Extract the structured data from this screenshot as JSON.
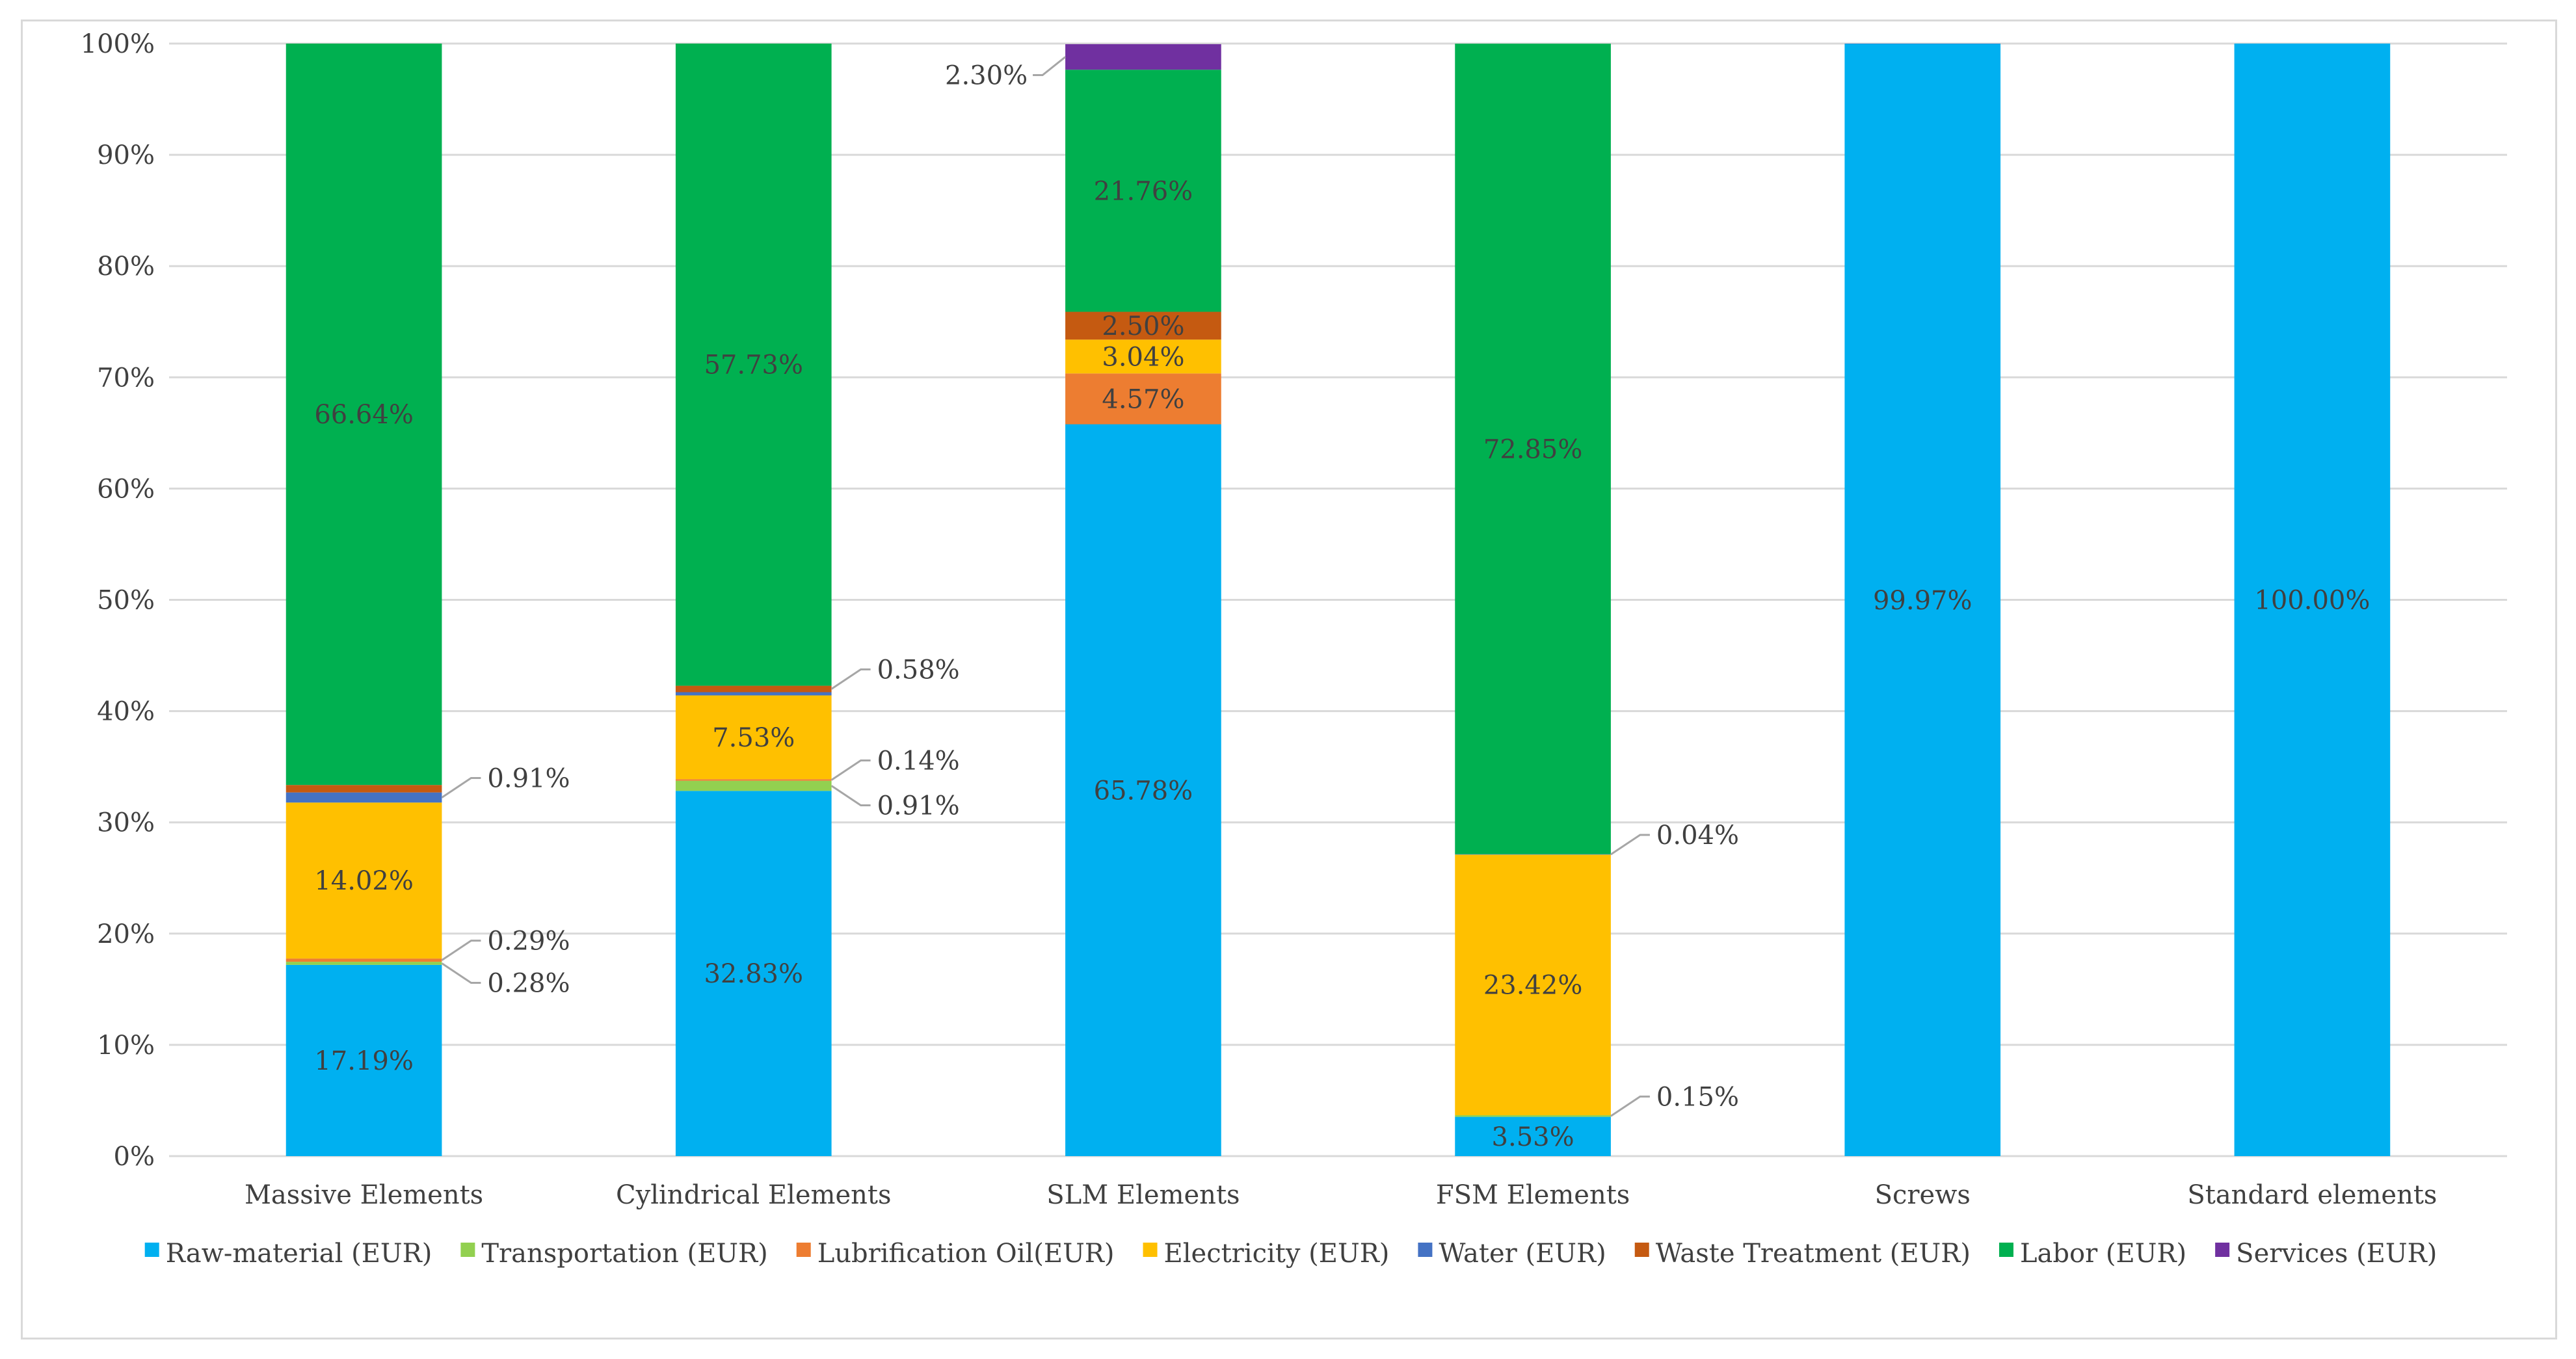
{
  "chart_data": {
    "type": "bar",
    "stacked": true,
    "percent_stacked": true,
    "title": "",
    "xlabel": "",
    "ylabel": "",
    "ylim": [
      0,
      100
    ],
    "y_ticks": [
      "0%",
      "10%",
      "20%",
      "30%",
      "40%",
      "50%",
      "60%",
      "70%",
      "80%",
      "90%",
      "100%"
    ],
    "grid": true,
    "legend_position": "bottom",
    "categories": [
      "Massive Elements",
      "Cylindrical Elements",
      "SLM Elements",
      "FSM Elements",
      "Screws",
      "Standard elements"
    ],
    "series": [
      {
        "name": "Raw-material (EUR)",
        "color": "#00b0f0",
        "values": [
          17.19,
          32.83,
          65.78,
          3.53,
          99.97,
          100.0
        ]
      },
      {
        "name": "Transportation (EUR)",
        "color": "#92d050",
        "values": [
          0.28,
          0.91,
          0,
          0.15,
          0,
          0
        ]
      },
      {
        "name": "Lubrification Oil(EUR)",
        "color": "#ed7d31",
        "values": [
          0.29,
          0.14,
          4.57,
          0,
          0,
          0
        ]
      },
      {
        "name": "Electricity (EUR)",
        "color": "#ffc000",
        "values": [
          14.02,
          7.53,
          3.04,
          23.42,
          0,
          0
        ]
      },
      {
        "name": "Water (EUR)",
        "color": "#4472c4",
        "values": [
          0.91,
          0.29,
          0,
          0.04,
          0.03,
          0
        ]
      },
      {
        "name": "Waste Treatment (EUR)",
        "color": "#c55a11",
        "values": [
          0.67,
          0.58,
          2.5,
          0,
          0,
          0
        ]
      },
      {
        "name": "Labor (EUR)",
        "color": "#00b050",
        "values": [
          66.64,
          57.73,
          21.76,
          72.85,
          0,
          0
        ]
      },
      {
        "name": "Services (EUR)",
        "color": "#7030a0",
        "values": [
          0,
          0,
          2.3,
          0,
          0,
          0
        ]
      }
    ],
    "data_labels": [
      {
        "category": 0,
        "series": 0,
        "text": "17.19%",
        "callout": false
      },
      {
        "category": 0,
        "series": 1,
        "text": "0.28%",
        "callout": true,
        "dir": "down"
      },
      {
        "category": 0,
        "series": 2,
        "text": "0.29%",
        "callout": true,
        "dir": "up"
      },
      {
        "category": 0,
        "series": 3,
        "text": "14.02%",
        "callout": false
      },
      {
        "category": 0,
        "series": 4,
        "text": "0.91%",
        "callout": true,
        "dir": "up"
      },
      {
        "category": 0,
        "series": 6,
        "text": "66.64%",
        "callout": false
      },
      {
        "category": 1,
        "series": 0,
        "text": "32.83%",
        "callout": false
      },
      {
        "category": 1,
        "series": 1,
        "text": "0.91%",
        "callout": true,
        "dir": "down"
      },
      {
        "category": 1,
        "series": 2,
        "text": "0.14%",
        "callout": true,
        "dir": "up"
      },
      {
        "category": 1,
        "series": 3,
        "text": "7.53%",
        "callout": false
      },
      {
        "category": 1,
        "series": 5,
        "text": "0.58%",
        "callout": true,
        "dir": "up"
      },
      {
        "category": 1,
        "series": 6,
        "text": "57.73%",
        "callout": false
      },
      {
        "category": 2,
        "series": 0,
        "text": "65.78%",
        "callout": false
      },
      {
        "category": 2,
        "series": 2,
        "text": "4.57%",
        "callout": false
      },
      {
        "category": 2,
        "series": 3,
        "text": "3.04%",
        "callout": false
      },
      {
        "category": 2,
        "series": 5,
        "text": "2.50%",
        "callout": false
      },
      {
        "category": 2,
        "series": 6,
        "text": "21.76%",
        "callout": false
      },
      {
        "category": 2,
        "series": 7,
        "text": "2.30%",
        "callout": true,
        "dir": "left"
      },
      {
        "category": 3,
        "series": 0,
        "text": "3.53%",
        "callout": false
      },
      {
        "category": 3,
        "series": 1,
        "text": "0.15%",
        "callout": true,
        "dir": "up"
      },
      {
        "category": 3,
        "series": 3,
        "text": "23.42%",
        "callout": false
      },
      {
        "category": 3,
        "series": 4,
        "text": "0.04%",
        "callout": true,
        "dir": "up"
      },
      {
        "category": 3,
        "series": 6,
        "text": "72.85%",
        "callout": false
      },
      {
        "category": 4,
        "series": 0,
        "text": "99.97%",
        "callout": false
      },
      {
        "category": 5,
        "series": 0,
        "text": "100.00%",
        "callout": false
      }
    ]
  }
}
